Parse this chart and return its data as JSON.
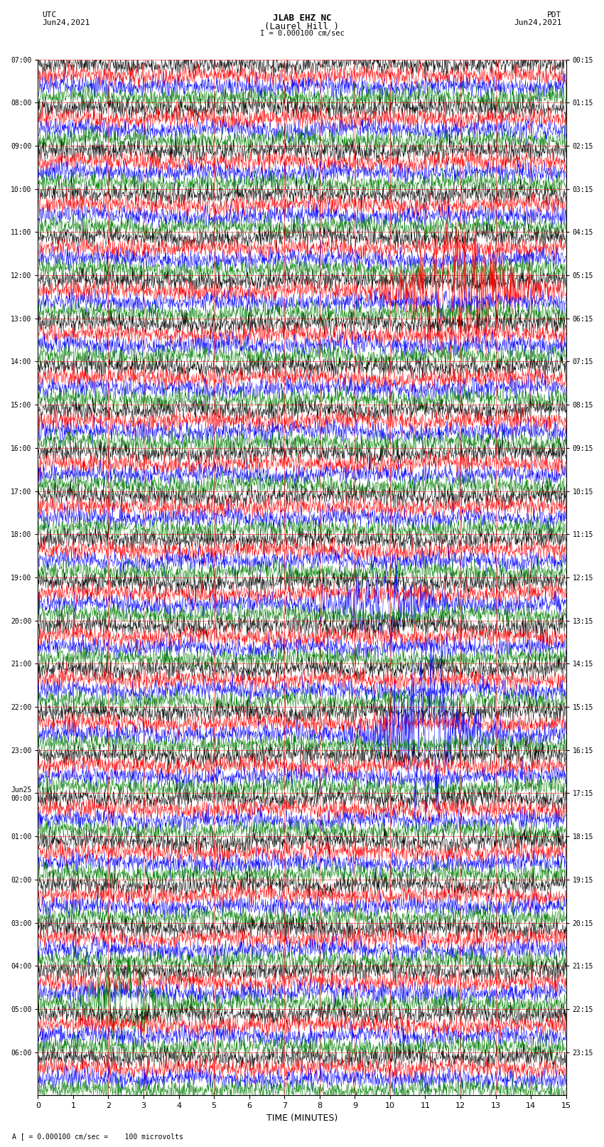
{
  "title_line1": "JLAB EHZ NC",
  "title_line2": "(Laurel Hill )",
  "title_line3": "I = 0.000100 cm/sec",
  "left_label_top": "UTC",
  "left_label_date": "Jun24,2021",
  "right_label_top": "PDT",
  "right_label_date": "Jun24,2021",
  "bottom_label": "TIME (MINUTES)",
  "scale_label": "A [ = 0.000100 cm/sec =    100 microvolts",
  "utc_times": [
    "07:00",
    "08:00",
    "09:00",
    "10:00",
    "11:00",
    "12:00",
    "13:00",
    "14:00",
    "15:00",
    "16:00",
    "17:00",
    "18:00",
    "19:00",
    "20:00",
    "21:00",
    "22:00",
    "23:00",
    "Jun25\n00:00",
    "01:00",
    "02:00",
    "03:00",
    "04:00",
    "05:00",
    "06:00"
  ],
  "pdt_times": [
    "00:15",
    "01:15",
    "02:15",
    "03:15",
    "04:15",
    "05:15",
    "06:15",
    "07:15",
    "08:15",
    "09:15",
    "10:15",
    "11:15",
    "12:15",
    "13:15",
    "14:15",
    "15:15",
    "16:15",
    "17:15",
    "18:15",
    "19:15",
    "20:15",
    "21:15",
    "22:15",
    "23:15"
  ],
  "n_hours": 24,
  "row_colors": [
    "black",
    "red",
    "blue",
    "green"
  ],
  "bg_color": "white",
  "grid_color": "red",
  "x_ticks": [
    0,
    1,
    2,
    3,
    4,
    5,
    6,
    7,
    8,
    9,
    10,
    11,
    12,
    13,
    14,
    15
  ],
  "noise_amplitude": 0.035,
  "seed": 42
}
